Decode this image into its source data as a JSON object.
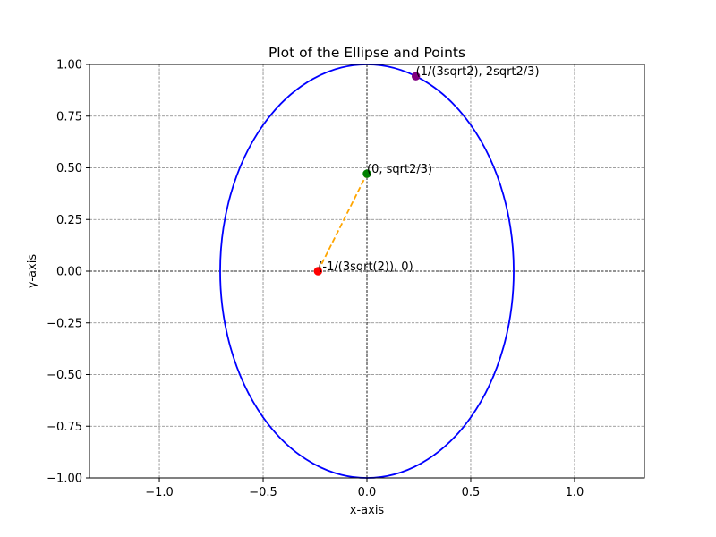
{
  "chart_data": {
    "type": "scatter",
    "title": "Plot of the Ellipse and Points",
    "xlabel": "x-axis",
    "ylabel": "y-axis",
    "xlim": [
      -1.3365,
      1.3365
    ],
    "ylim": [
      -1.0,
      1.0
    ],
    "grid": true,
    "xticks": [
      -1.0,
      -0.5,
      0.0,
      0.5,
      1.0
    ],
    "xtick_labels": [
      "−1.0",
      "−0.5",
      "0.0",
      "0.5",
      "1.0"
    ],
    "yticks": [
      -1.0,
      -0.75,
      -0.5,
      -0.25,
      0.0,
      0.25,
      0.5,
      0.75,
      1.0
    ],
    "ytick_labels": [
      "−1.00",
      "−0.75",
      "−0.50",
      "−0.25",
      "0.00",
      "0.25",
      "0.50",
      "0.75",
      "1.00"
    ],
    "ellipse": {
      "cx": 0,
      "cy": 0,
      "a": 0.7071,
      "b": 1.0,
      "color": "#0000ff"
    },
    "segment": {
      "from": [
        -0.2357,
        0.0
      ],
      "to": [
        0.0,
        0.4714
      ],
      "color": "#ffa500",
      "style": "dashed"
    },
    "points": [
      {
        "x": -0.2357,
        "y": 0.0,
        "color": "#ff0000",
        "label": "(-1/(3sqrt(2)), 0)"
      },
      {
        "x": 0.0,
        "y": 0.4714,
        "color": "#008000",
        "label": "(0, sqrt2/3)"
      },
      {
        "x": 0.2357,
        "y": 0.9428,
        "color": "#800080",
        "label": "(1/(3sqrt2), 2sqrt2/3)"
      }
    ]
  }
}
